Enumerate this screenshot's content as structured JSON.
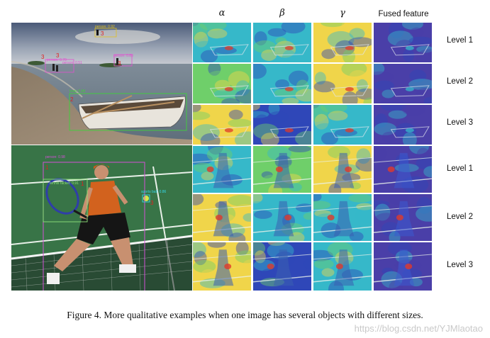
{
  "columns": {
    "alpha": "α",
    "beta": "β",
    "gamma": "γ",
    "fused": "Fused feature"
  },
  "levels": [
    "Level 1",
    "Level 2",
    "Level 3",
    "Level 1",
    "Level 2",
    "Level 3"
  ],
  "boat_scene": {
    "detections": [
      {
        "label": "person: 0.92",
        "num": "3",
        "color": "#e0c020"
      },
      {
        "label": "person: 0.70",
        "num": "3",
        "color": "#e24fd0"
      },
      {
        "label": "person: 0.51",
        "num": "3",
        "color": "#e24fd0"
      },
      {
        "label": "person: 0.83",
        "num": "3",
        "color": "#e24fd0"
      },
      {
        "label": "boat: 0.84",
        "num": "2",
        "color": "#3fd23a"
      }
    ]
  },
  "tennis_scene": {
    "detections": [
      {
        "label": "person: 0.98",
        "num": "1",
        "color": "#d34fd6"
      },
      {
        "label": "tennis racket: 0.91",
        "num": "1",
        "color": "#8fe27a"
      },
      {
        "label": "sports ball: 0.86",
        "num": "3",
        "color": "#36d8e8"
      }
    ]
  },
  "caption": "Figure 4. More qualitative examples when one image has several objects with different sizes.",
  "watermark": "https://blog.csdn.net/YJMlaotao",
  "colors": {
    "heat_blue": "#2f47b8",
    "heat_cyan": "#36b8c9",
    "heat_green": "#6fcf6a",
    "heat_yellow": "#f0d54a",
    "heat_red": "#e03a2a",
    "fused_purple": "#4a3fa8"
  }
}
